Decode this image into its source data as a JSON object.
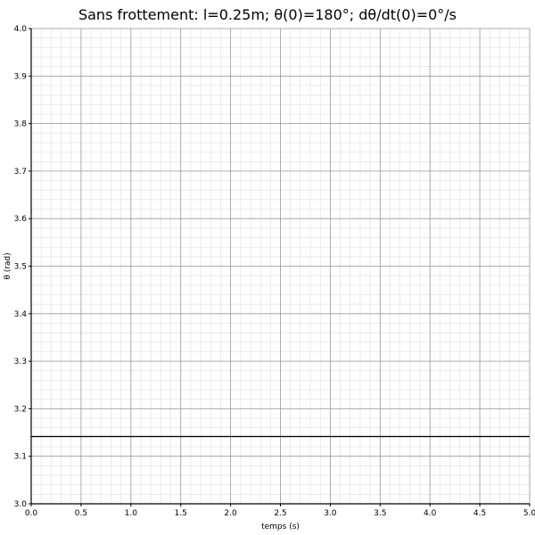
{
  "chart_data": {
    "type": "line",
    "title": "Sans frottement: l=0.25m; θ(0)=180°; dθ/dt(0)=0°/s",
    "xlabel": "temps (s)",
    "ylabel": "θ (rad)",
    "xlim": [
      0.0,
      5.0
    ],
    "ylim": [
      3.0,
      4.0
    ],
    "x_major_step": 0.5,
    "x_minor_step": 0.1,
    "y_major_step": 0.1,
    "y_minor_step": 0.02,
    "x_ticks": [
      "0.0",
      "0.5",
      "1.0",
      "1.5",
      "2.0",
      "2.5",
      "3.0",
      "3.5",
      "4.0",
      "4.5",
      "5.0"
    ],
    "y_ticks": [
      "3.0",
      "3.1",
      "3.2",
      "3.3",
      "3.4",
      "3.5",
      "3.6",
      "3.7",
      "3.8",
      "3.9",
      "4.0"
    ],
    "grid": true,
    "legend": false,
    "series": [
      {
        "x": [
          0.0,
          5.0
        ],
        "y": [
          3.14159,
          3.14159
        ],
        "color": "#000000"
      }
    ]
  }
}
